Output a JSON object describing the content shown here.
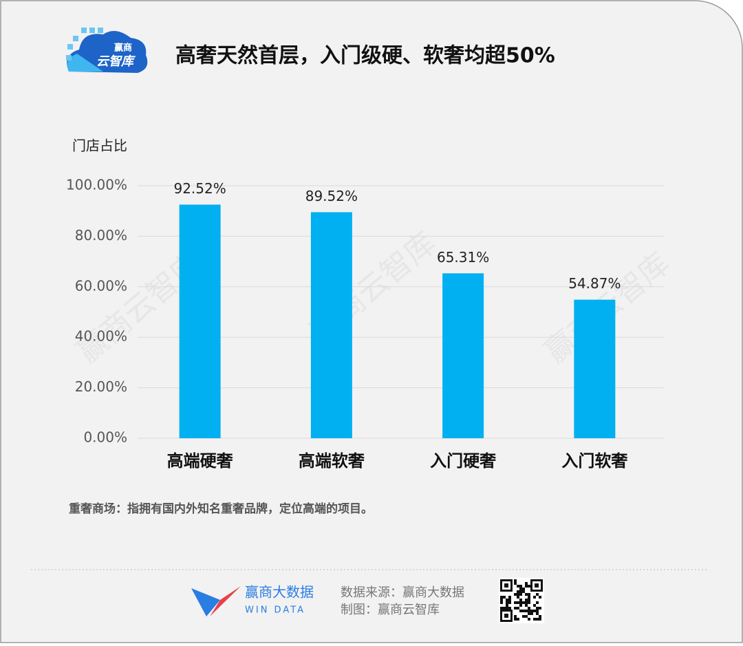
{
  "chart_data": {
    "type": "bar",
    "title": "高奢天然首层，入门级硬、软奢均超50%",
    "y_label": "门店占比",
    "categories": [
      "高端硬奢",
      "高端软奢",
      "入门硬奢",
      "入门软奢"
    ],
    "values": [
      92.52,
      89.52,
      65.31,
      54.87
    ],
    "value_labels": [
      "92.52%",
      "89.52%",
      "65.31%",
      "54.87%"
    ],
    "color": "#00b0f0",
    "ylim": [
      0,
      100
    ],
    "yticks": [
      {
        "value": 0,
        "label": "0.00%"
      },
      {
        "value": 20,
        "label": "20.00%"
      },
      {
        "value": 40,
        "label": "40.00%"
      },
      {
        "value": 60,
        "label": "60.00%"
      },
      {
        "value": 80,
        "label": "80.00%"
      },
      {
        "value": 100,
        "label": "100.00%"
      }
    ],
    "grid": true,
    "note": "重奢商场：指拥有国内外知名重奢品牌，定位高端的项目。",
    "watermark": "赢商云智库"
  },
  "logo": {
    "line1": "赢商",
    "line2": "云智库"
  },
  "footer": {
    "brand": "赢商大数据",
    "brand_en": "WIN DATA",
    "source": "数据来源：赢商大数据",
    "made_by": "制图：赢商云智库"
  }
}
